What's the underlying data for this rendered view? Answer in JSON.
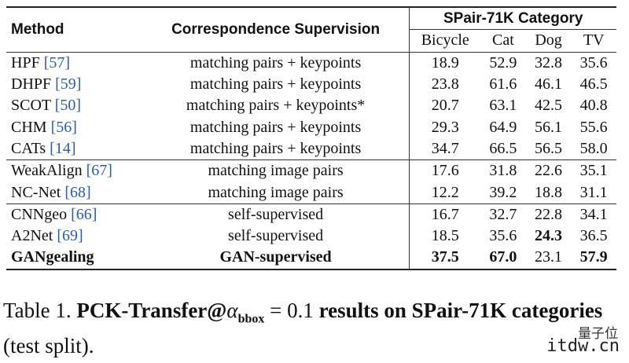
{
  "table": {
    "header": {
      "method": "Method",
      "supervision": "Correspondence Supervision",
      "group": "SPair-71K Category",
      "categories": [
        "Bicycle",
        "Cat",
        "Dog",
        "TV"
      ]
    },
    "groups": [
      {
        "rows": [
          {
            "method": "HPF",
            "ref": "[57]",
            "supervision": "matching pairs + keypoints",
            "values": [
              "18.9",
              "52.9",
              "32.8",
              "35.6"
            ]
          },
          {
            "method": "DHPF",
            "ref": "[59]",
            "supervision": "matching pairs + keypoints",
            "values": [
              "23.8",
              "61.6",
              "46.1",
              "46.5"
            ]
          },
          {
            "method": "SCOT",
            "ref": "[50]",
            "supervision": "matching pairs + keypoints*",
            "values": [
              "20.7",
              "63.1",
              "42.5",
              "40.8"
            ]
          },
          {
            "method": "CHM",
            "ref": "[56]",
            "supervision": "matching pairs + keypoints",
            "values": [
              "29.3",
              "64.9",
              "56.1",
              "55.6"
            ]
          },
          {
            "method": "CATs",
            "ref": "[14]",
            "supervision": "matching pairs + keypoints",
            "values": [
              "34.7",
              "66.5",
              "56.5",
              "58.0"
            ]
          }
        ]
      },
      {
        "rows": [
          {
            "method": "WeakAlign",
            "ref": "[67]",
            "supervision": "matching image pairs",
            "values": [
              "17.6",
              "31.8",
              "22.6",
              "35.1"
            ]
          },
          {
            "method": "NC-Net",
            "ref": "[68]",
            "supervision": "matching image pairs",
            "values": [
              "12.2",
              "39.2",
              "18.8",
              "31.1"
            ]
          }
        ]
      },
      {
        "rows": [
          {
            "method": "CNNgeo",
            "ref": "[66]",
            "supervision": "self-supervised",
            "values": [
              "16.7",
              "32.7",
              "22.8",
              "34.1"
            ]
          },
          {
            "method": "A2Net",
            "ref": "[69]",
            "supervision": "self-supervised",
            "values": [
              "18.5",
              "35.6",
              "24.3",
              "36.5"
            ],
            "bold_values": [
              2
            ]
          },
          {
            "method": "GANgealing",
            "supervision": "GAN-supervised",
            "values": [
              "37.5",
              "67.0",
              "23.1",
              "57.9"
            ],
            "bold": true,
            "bold_values": [
              0,
              1,
              3
            ]
          }
        ]
      }
    ]
  },
  "caption": {
    "label": "Table 1.",
    "bold_a": "PCK-Transfer@",
    "alpha": "α",
    "sub": "bbox",
    "eq": "= 0.1",
    "bold_b": "results on SPair-71K categories",
    "rest": "(test split)."
  },
  "watermark": {
    "brand": "量子位",
    "site": "itdw.cn"
  }
}
